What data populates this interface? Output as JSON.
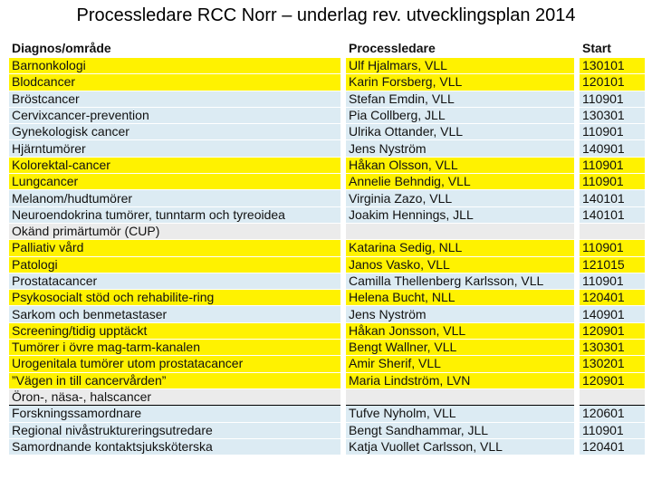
{
  "title": "Processledare RCC Norr – underlag rev. utvecklingsplan 2014",
  "colors": {
    "highlight": "#fff200",
    "row_blue": "#dcebf3",
    "row_gray": "#ebebeb"
  },
  "table": {
    "headers": {
      "area": "Diagnos/område",
      "leader": "Processledare",
      "start": "Start"
    },
    "rows": [
      {
        "area": "Barnonkologi",
        "leader": "Ulf Hjalmars, VLL",
        "start": "130101",
        "style": "hl"
      },
      {
        "area": "Blodcancer",
        "leader": "Karin Forsberg, VLL",
        "start": "120101",
        "style": "hl"
      },
      {
        "area": "Bröstcancer",
        "leader": "Stefan Emdin, VLL",
        "start": "110901",
        "style": "pl"
      },
      {
        "area": "Cervixcancer-prevention",
        "leader": "Pia Collberg, JLL",
        "start": "130301",
        "style": "pl"
      },
      {
        "area": "Gynekologisk cancer",
        "leader": "Ulrika Ottander, VLL",
        "start": "110901",
        "style": "pl"
      },
      {
        "area": "Hjärntumörer",
        "leader": "Jens Nyström",
        "start": "140901",
        "style": "pl"
      },
      {
        "area": "Kolorektal-cancer",
        "leader": "Håkan Olsson, VLL",
        "start": "110901",
        "style": "hl"
      },
      {
        "area": "Lungcancer",
        "leader": "Annelie Behndig, VLL",
        "start": "110901",
        "style": "hl"
      },
      {
        "area": "Melanom/hudtumörer",
        "leader": "Virginia Zazo, VLL",
        "start": "140101",
        "style": "pl"
      },
      {
        "area": "Neuroendokrina tumörer, tunntarm och tyreoidea",
        "leader": "Joakim Hennings, JLL",
        "start": "140101",
        "style": "pl"
      },
      {
        "area": "Okänd primärtumör (CUP)",
        "leader": "",
        "start": "",
        "style": "gr"
      },
      {
        "area": "Palliativ vård",
        "leader": "Katarina Sedig, NLL",
        "start": "110901",
        "style": "hl"
      },
      {
        "area": "Patologi",
        "leader": "Janos Vasko, VLL",
        "start": "121015",
        "style": "hl"
      },
      {
        "area": "Prostatacancer",
        "leader": "Camilla Thellenberg Karlsson, VLL",
        "start": "110901",
        "style": "pl"
      },
      {
        "area": "Psykosocialt stöd och rehabilite-ring",
        "leader": "Helena Bucht, NLL",
        "start": "120401",
        "style": "hl"
      },
      {
        "area": "Sarkom och benmetastaser",
        "leader": "Jens Nyström",
        "start": "140901",
        "style": "pl"
      },
      {
        "area": "Screening/tidig upptäckt",
        "leader": "Håkan Jonsson, VLL",
        "start": "120901",
        "style": "hl"
      },
      {
        "area": "Tumörer i övre mag-tarm-kanalen",
        "leader": "Bengt Wallner, VLL",
        "start": "130301",
        "style": "hl"
      },
      {
        "area": "Urogenitala tumörer utom prostatacancer",
        "leader": "Amir Sherif, VLL",
        "start": "130201",
        "style": "hl"
      },
      {
        "area": "”Vägen in till cancervården”",
        "leader": "Maria Lindström, LVN",
        "start": "120901",
        "style": "hl"
      },
      {
        "area": "Öron-, näsa-, halscancer",
        "leader": "",
        "start": "",
        "style": "gr sep"
      },
      {
        "area": "Forskningssamordnare",
        "leader": "Tufve Nyholm, VLL",
        "start": "120601",
        "style": "pl"
      },
      {
        "area": "Regional nivåstruktureringsutredare",
        "leader": "Bengt Sandhammar, JLL",
        "start": "110901",
        "style": "pl"
      },
      {
        "area": "Samordnande kontaktsjuksköterska",
        "leader": "Katja Vuollet Carlsson, VLL",
        "start": "120401",
        "style": "pl"
      }
    ]
  }
}
